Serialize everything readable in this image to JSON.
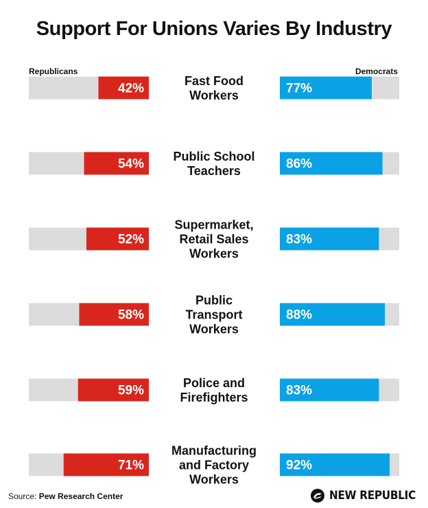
{
  "title": "Support For Unions Varies By Industry",
  "source_prefix": "Source: ",
  "source_name": "Pew Research Center",
  "brand_name": "NEW REPUBLIC",
  "colors": {
    "republican": "#d9261c",
    "democrat": "#0aa2e4",
    "track": "#dcdcdc",
    "text": "#111111"
  },
  "chart_data": {
    "type": "bar",
    "legend": {
      "left": "Republicans",
      "right": "Democrats"
    },
    "xlim": [
      0,
      100
    ],
    "categories": [
      [
        "Fast Food",
        "Workers"
      ],
      [
        "Public School",
        "Teachers"
      ],
      [
        "Supermarket,",
        "Retail Sales",
        "Workers"
      ],
      [
        "Public",
        "Transport",
        "Workers"
      ],
      [
        "Police and",
        "Firefighters"
      ],
      [
        "Manufacturing",
        "and Factory",
        "Workers"
      ]
    ],
    "series": [
      {
        "name": "Republicans",
        "values": [
          42,
          54,
          52,
          58,
          59,
          71
        ],
        "labels": [
          "42%",
          "54%",
          "52%",
          "58%",
          "59%",
          "71%"
        ]
      },
      {
        "name": "Democrats",
        "values": [
          77,
          86,
          83,
          88,
          83,
          92
        ],
        "labels": [
          "77%",
          "86%",
          "83%",
          "88%",
          "83%",
          "92%"
        ]
      }
    ]
  }
}
